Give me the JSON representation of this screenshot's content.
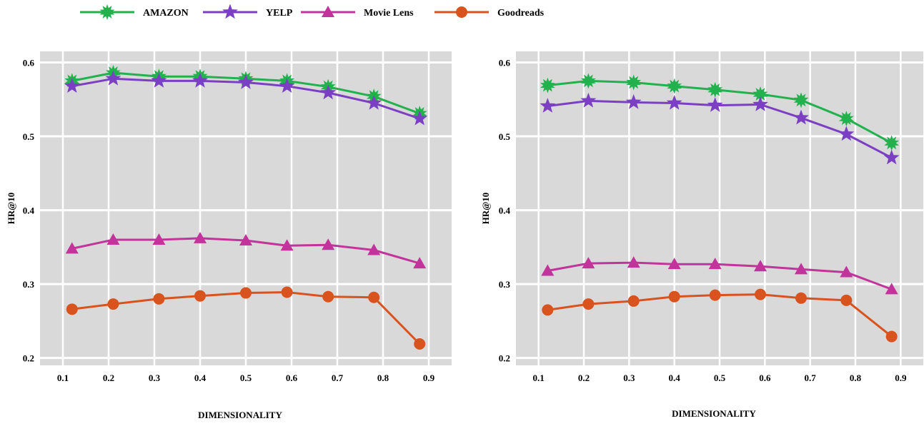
{
  "legend": [
    {
      "name": "AMAZON",
      "color": "#22b14c",
      "marker": "starburst"
    },
    {
      "name": "YELP",
      "color": "#7b3fc4",
      "marker": "star"
    },
    {
      "name": "Movie Lens",
      "color": "#c2349c",
      "marker": "triangle"
    },
    {
      "name": "Goodreads",
      "color": "#d9531e",
      "marker": "circle"
    }
  ],
  "chart_data": [
    {
      "type": "line",
      "xlabel": "DIMENSIONALITY",
      "ylabel": "HR@10",
      "xlim": [
        0.05,
        0.95
      ],
      "ylim": [
        0.19,
        0.615
      ],
      "xticks": [
        0.1,
        0.2,
        0.3,
        0.4,
        0.5,
        0.6,
        0.7,
        0.8,
        0.9
      ],
      "xtick_labels": [
        "0.1",
        "0.2",
        "0.3",
        "0.4",
        "0.5",
        "0.6",
        "0.7",
        "0.8",
        "0.9"
      ],
      "yticks": [
        0.2,
        0.3,
        0.4,
        0.5,
        0.6
      ],
      "ytick_labels": [
        "0.2",
        "0.3",
        "0.4",
        "0.5",
        "0.6"
      ],
      "grid": true,
      "x": [
        0.12,
        0.21,
        0.31,
        0.4,
        0.5,
        0.59,
        0.68,
        0.78,
        0.88
      ],
      "series": [
        {
          "name": "AMAZON",
          "values": [
            0.575,
            0.586,
            0.581,
            0.581,
            0.578,
            0.575,
            0.567,
            0.554,
            0.531
          ]
        },
        {
          "name": "YELP",
          "values": [
            0.568,
            0.578,
            0.575,
            0.575,
            0.573,
            0.568,
            0.559,
            0.545,
            0.524
          ]
        },
        {
          "name": "Movie Lens",
          "values": [
            0.348,
            0.36,
            0.36,
            0.362,
            0.359,
            0.352,
            0.353,
            0.346,
            0.328
          ]
        },
        {
          "name": "Goodreads",
          "values": [
            0.266,
            0.273,
            0.28,
            0.284,
            0.288,
            0.289,
            0.283,
            0.282,
            0.219
          ]
        }
      ]
    },
    {
      "type": "line",
      "xlabel": "DIMENSIONALITY",
      "ylabel": "HR@10",
      "xlim": [
        0.05,
        0.95
      ],
      "ylim": [
        0.19,
        0.615
      ],
      "xticks": [
        0.1,
        0.2,
        0.3,
        0.4,
        0.5,
        0.6,
        0.7,
        0.8,
        0.9
      ],
      "xtick_labels": [
        "0.1",
        "0.2",
        "0.3",
        "0.4",
        "0.5",
        "0.6",
        "0.7",
        "0.8",
        "0.9"
      ],
      "yticks": [
        0.2,
        0.3,
        0.4,
        0.5,
        0.6
      ],
      "ytick_labels": [
        "0.2",
        "0.3",
        "0.4",
        "0.5",
        "0.6"
      ],
      "grid": true,
      "x": [
        0.12,
        0.21,
        0.31,
        0.4,
        0.49,
        0.59,
        0.68,
        0.78,
        0.88
      ],
      "series": [
        {
          "name": "AMAZON",
          "values": [
            0.569,
            0.575,
            0.573,
            0.568,
            0.563,
            0.557,
            0.549,
            0.524,
            0.491
          ]
        },
        {
          "name": "YELP",
          "values": [
            0.541,
            0.548,
            0.546,
            0.545,
            0.542,
            0.543,
            0.525,
            0.503,
            0.471
          ]
        },
        {
          "name": "Movie Lens",
          "values": [
            0.318,
            0.328,
            0.329,
            0.327,
            0.327,
            0.324,
            0.32,
            0.316,
            0.293
          ]
        },
        {
          "name": "Goodreads",
          "values": [
            0.265,
            0.273,
            0.277,
            0.283,
            0.285,
            0.286,
            0.281,
            0.278,
            0.229
          ]
        }
      ]
    }
  ]
}
